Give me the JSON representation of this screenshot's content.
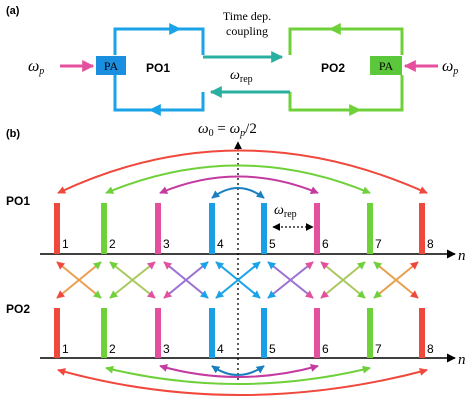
{
  "panel_a": {
    "label": "(a)",
    "coupling_label_line1": "Time dep.",
    "coupling_label_line2": "coupling",
    "omega_rep": "ωrep",
    "po1_label": "PO1",
    "po2_label": "PO2",
    "pa_label": "PA",
    "omega_p": "ωp",
    "colors": {
      "po1": "#1aa3e6",
      "po2": "#6fd13a",
      "pump": "#e5509e",
      "pa1_fill": "#1a8fe0",
      "pa2_fill": "#5bc73a"
    }
  },
  "panel_b": {
    "label": "(b)",
    "center_label": "ω0 = ωp/2",
    "omega_rep": "ωrep",
    "po1_label": "PO1",
    "po2_label": "PO2",
    "axis_label": "n",
    "mode_numbers": [
      "1",
      "2",
      "3",
      "4",
      "5",
      "6",
      "7",
      "8"
    ],
    "mode_colors": [
      "#f0483c",
      "#6fd13a",
      "#e5509e",
      "#1a9ee6",
      "#1a9ee6",
      "#e5509e",
      "#6fd13a",
      "#f0483c"
    ]
  }
}
